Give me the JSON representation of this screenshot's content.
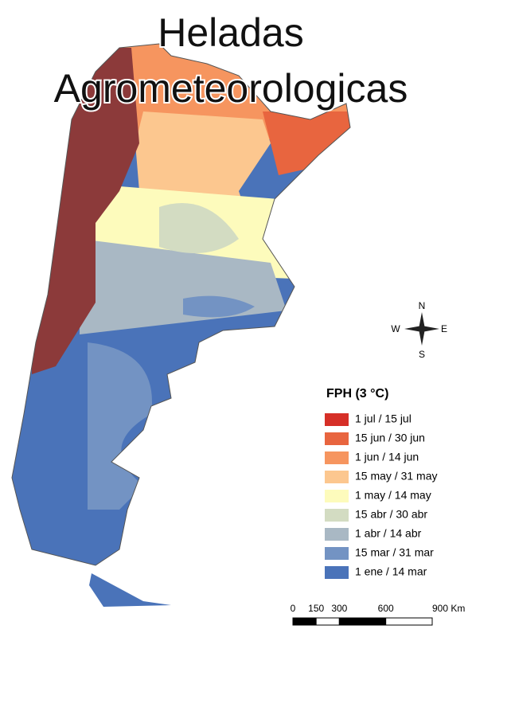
{
  "title_lines": [
    "Heladas",
    "Agrometeorologicas"
  ],
  "legend": {
    "title": "FPH (3 °C)",
    "items": [
      {
        "label": "1 jul / 15 jul",
        "color": "#d62f27"
      },
      {
        "label": "15 jun / 30 jun",
        "color": "#e8653f"
      },
      {
        "label": "1 jun / 14 jun",
        "color": "#f6955f"
      },
      {
        "label": "15 may / 31 may",
        "color": "#fcc78f"
      },
      {
        "label": "1 may / 14 may",
        "color": "#fdfbbc"
      },
      {
        "label": "15 abr / 30 abr",
        "color": "#d3dcc2"
      },
      {
        "label": "1 abr / 14 abr",
        "color": "#a9b8c4"
      },
      {
        "label": "15 mar / 31 mar",
        "color": "#7393c3"
      },
      {
        "label": "1 ene / 14 mar",
        "color": "#4a73b9"
      }
    ]
  },
  "compass": {
    "n": "N",
    "s": "S",
    "e": "E",
    "w": "W"
  },
  "scale": {
    "max": 900,
    "ticks": [
      {
        "value": 0,
        "label": "0"
      },
      {
        "value": 150,
        "label": "150"
      },
      {
        "value": 300,
        "label": "300"
      },
      {
        "value": 600,
        "label": "600"
      },
      {
        "value": 900,
        "label": "900 Km"
      }
    ]
  }
}
